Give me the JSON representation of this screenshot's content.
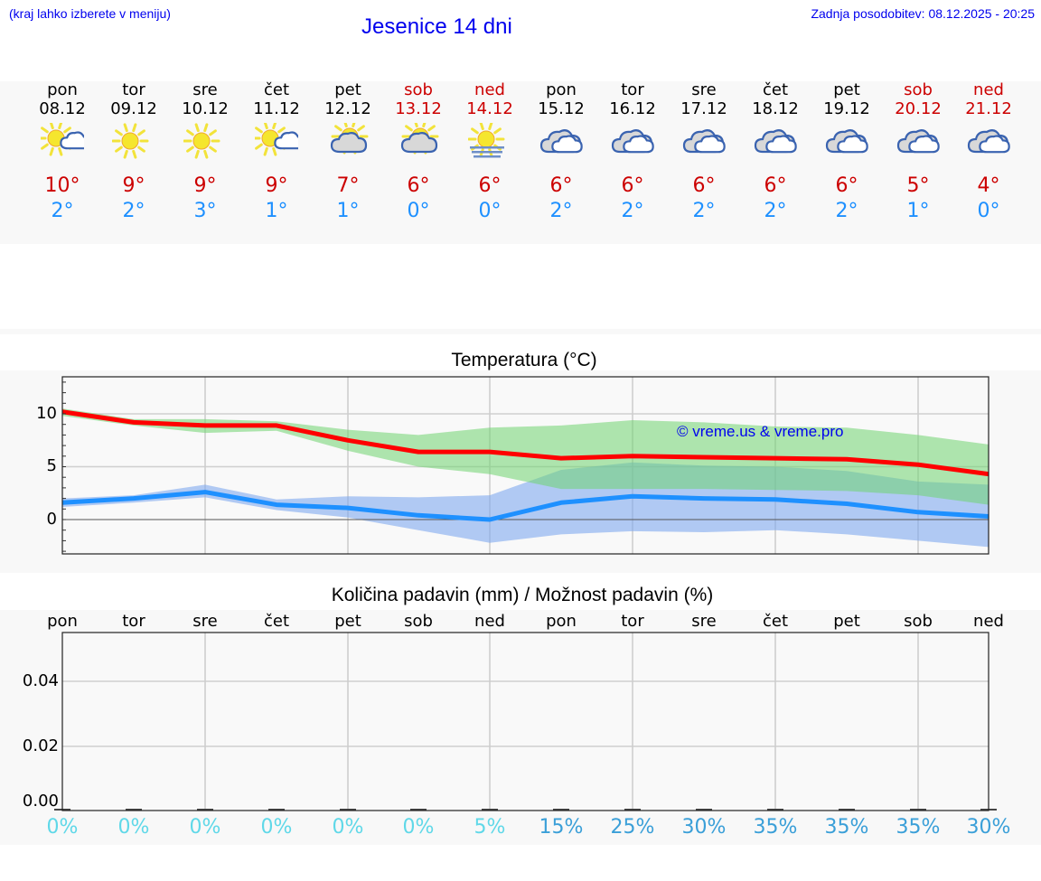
{
  "header": {
    "location_hint": "(kraj lahko izberete v meniju)",
    "title": "Jesenice 14 dni",
    "last_update": "Zadnja posodobitev: 08.12.2025 - 20:25"
  },
  "colors": {
    "link_blue": "#0000ee",
    "max_temp": "#cc0000",
    "min_temp": "#1e90ff",
    "max_line": "#ff0000",
    "min_line": "#1e90ff",
    "max_band": "#aee8ae",
    "min_band": "#aec8f2",
    "overlap_band": "#7fc8a8",
    "pct_low": "#5fd8e8",
    "pct_high": "#3a9fd8"
  },
  "forecast": {
    "days": [
      {
        "name": "pon",
        "date": "08.12",
        "weekend": false,
        "icon": "sun-cloud-icon",
        "max": "10°",
        "min": "2°"
      },
      {
        "name": "tor",
        "date": "09.12",
        "weekend": false,
        "icon": "sun-icon",
        "max": "9°",
        "min": "2°"
      },
      {
        "name": "sre",
        "date": "10.12",
        "weekend": false,
        "icon": "sun-icon",
        "max": "9°",
        "min": "3°"
      },
      {
        "name": "čet",
        "date": "11.12",
        "weekend": false,
        "icon": "sun-cloud-icon",
        "max": "9°",
        "min": "1°"
      },
      {
        "name": "pet",
        "date": "12.12",
        "weekend": false,
        "icon": "cloud-sun-icon",
        "max": "7°",
        "min": "1°"
      },
      {
        "name": "sob",
        "date": "13.12",
        "weekend": true,
        "icon": "cloud-sun-icon",
        "max": "6°",
        "min": "0°"
      },
      {
        "name": "ned",
        "date": "14.12",
        "weekend": true,
        "icon": "sun-fog-icon",
        "max": "6°",
        "min": "0°"
      },
      {
        "name": "pon",
        "date": "15.12",
        "weekend": false,
        "icon": "cloudy-icon",
        "max": "6°",
        "min": "2°"
      },
      {
        "name": "tor",
        "date": "16.12",
        "weekend": false,
        "icon": "cloudy-icon",
        "max": "6°",
        "min": "2°"
      },
      {
        "name": "sre",
        "date": "17.12",
        "weekend": false,
        "icon": "cloudy-icon",
        "max": "6°",
        "min": "2°"
      },
      {
        "name": "čet",
        "date": "18.12",
        "weekend": false,
        "icon": "cloudy-icon",
        "max": "6°",
        "min": "2°"
      },
      {
        "name": "pet",
        "date": "19.12",
        "weekend": false,
        "icon": "cloudy-icon",
        "max": "6°",
        "min": "2°"
      },
      {
        "name": "sob",
        "date": "20.12",
        "weekend": true,
        "icon": "cloudy-icon",
        "max": "5°",
        "min": "1°"
      },
      {
        "name": "ned",
        "date": "21.12",
        "weekend": true,
        "icon": "cloudy-icon",
        "max": "4°",
        "min": "0°"
      }
    ]
  },
  "temperature_chart": {
    "title": "Temperatura (°C)",
    "copyright": "© vreme.us & vreme.pro",
    "yticks": [
      "10",
      "5",
      "0"
    ]
  },
  "precip_chart": {
    "title": "Količina padavin (mm) / Možnost padavin (%)",
    "weekdays": [
      "pon",
      "tor",
      "sre",
      "čet",
      "pet",
      "sob",
      "ned",
      "pon",
      "tor",
      "sre",
      "čet",
      "pet",
      "sob",
      "ned"
    ],
    "yticks": [
      "0.04",
      "0.02",
      "0.00"
    ],
    "chances": [
      "0%",
      "0%",
      "0%",
      "0%",
      "0%",
      "0%",
      "5%",
      "15%",
      "25%",
      "30%",
      "35%",
      "35%",
      "35%",
      "30%"
    ]
  },
  "chart_data": [
    {
      "type": "line",
      "title": "Temperatura (°C)",
      "xlabel": "",
      "ylabel": "°C",
      "ylim": [
        -3.2,
        13.5
      ],
      "grid": true,
      "x": [
        "08.12",
        "09.12",
        "10.12",
        "11.12",
        "12.12",
        "13.12",
        "14.12",
        "15.12",
        "16.12",
        "17.12",
        "18.12",
        "19.12",
        "20.12",
        "21.12"
      ],
      "yticks": [
        0,
        5,
        10
      ],
      "series": [
        {
          "name": "max",
          "color": "#ff0000",
          "values": [
            10.2,
            9.2,
            8.9,
            8.9,
            7.5,
            6.4,
            6.4,
            5.8,
            6.0,
            5.9,
            5.8,
            5.7,
            5.2,
            4.3
          ]
        },
        {
          "name": "min",
          "color": "#1e90ff",
          "values": [
            1.6,
            2.0,
            2.6,
            1.4,
            1.1,
            0.4,
            0.0,
            1.6,
            2.2,
            2.0,
            1.9,
            1.5,
            0.7,
            0.3
          ]
        },
        {
          "name": "max_band_upper",
          "values": [
            10.5,
            9.5,
            9.5,
            9.3,
            8.5,
            8.0,
            8.7,
            8.9,
            9.4,
            9.2,
            8.8,
            8.7,
            8.0,
            7.1
          ]
        },
        {
          "name": "max_band_lower",
          "values": [
            9.8,
            8.9,
            8.2,
            8.4,
            6.5,
            5.0,
            4.3,
            2.9,
            2.9,
            2.9,
            2.8,
            2.7,
            2.3,
            1.4
          ]
        },
        {
          "name": "min_band_upper",
          "values": [
            2.0,
            2.3,
            3.3,
            1.9,
            2.2,
            2.1,
            2.3,
            4.7,
            5.4,
            5.1,
            5.0,
            4.6,
            3.6,
            3.3
          ]
        },
        {
          "name": "min_band_lower",
          "values": [
            1.2,
            1.6,
            2.1,
            0.9,
            0.2,
            -1.0,
            -2.2,
            -1.4,
            -1.1,
            -1.2,
            -1.0,
            -1.4,
            -2.0,
            -2.6
          ]
        }
      ],
      "annotations": [
        "© vreme.us & vreme.pro"
      ]
    },
    {
      "type": "bar",
      "title": "Količina padavin (mm) / Možnost padavin (%)",
      "categories": [
        "pon",
        "tor",
        "sre",
        "čet",
        "pet",
        "sob",
        "ned",
        "pon",
        "tor",
        "sre",
        "čet",
        "pet",
        "sob",
        "ned"
      ],
      "series": [
        {
          "name": "Količina padavin (mm)",
          "values": [
            0,
            0,
            0,
            0,
            0,
            0,
            0,
            0,
            0,
            0,
            0,
            0,
            0,
            0
          ]
        },
        {
          "name": "Možnost padavin (%)",
          "values": [
            0,
            0,
            0,
            0,
            0,
            0,
            5,
            15,
            25,
            30,
            35,
            35,
            35,
            30
          ]
        }
      ],
      "ylabel": "mm",
      "ylim": [
        0,
        0.055
      ],
      "yticks": [
        0.0,
        0.02,
        0.04
      ],
      "grid": true
    }
  ]
}
